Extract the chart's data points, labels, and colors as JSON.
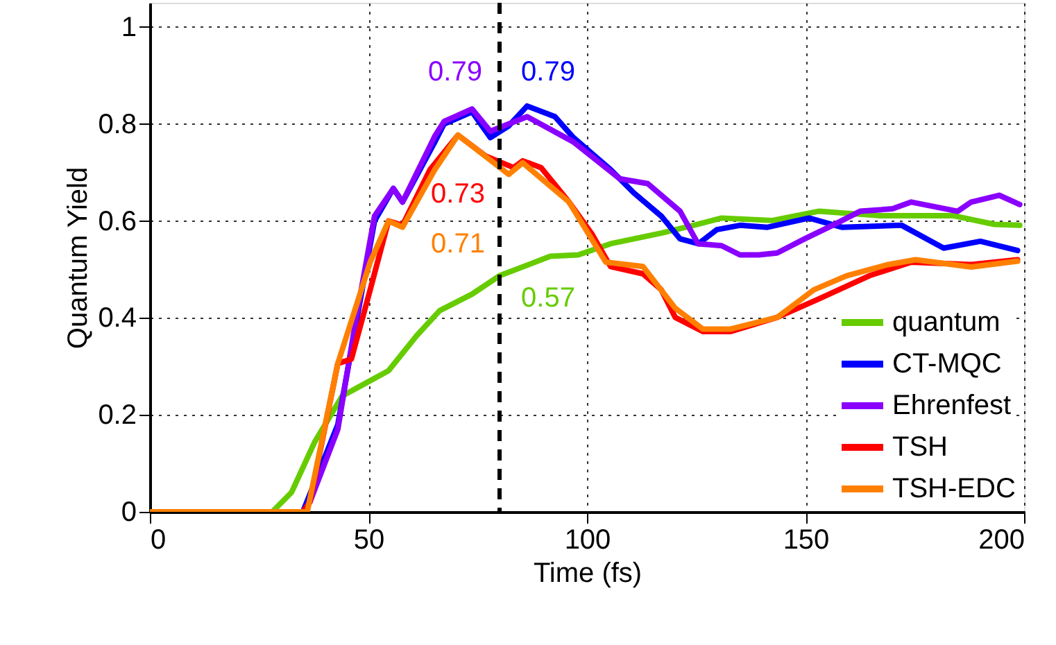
{
  "chart_data": {
    "type": "line",
    "xlabel": "Time (fs)",
    "ylabel": "Quantum Yield",
    "xlim": [
      0,
      200
    ],
    "ylim": [
      0,
      1.05
    ],
    "xticks": [
      0,
      50,
      100,
      150,
      200
    ],
    "yticks": [
      0,
      0.2,
      0.4,
      0.6,
      0.8,
      1
    ],
    "grid": true,
    "legend": "bottom right",
    "line_style": "solid",
    "marker": "none",
    "series": [
      {
        "name": "quantum",
        "color": "#66cc00",
        "x": [
          0,
          28,
          32.4,
          37.7,
          44,
          54.6,
          61,
          66.3,
          73.7,
          80,
          91.6,
          98,
          105.4,
          117,
          124.4,
          130.8,
          142.4,
          153,
          166.7,
          183.7,
          193.2,
          199
        ],
        "values": [
          0,
          0,
          0.04,
          0.144,
          0.239,
          0.291,
          0.363,
          0.415,
          0.449,
          0.487,
          0.527,
          0.53,
          0.553,
          0.575,
          0.591,
          0.606,
          0.601,
          0.62,
          0.611,
          0.611,
          0.593,
          0.591
        ]
      },
      {
        "name": "CT-MQC",
        "color": "#0000ff",
        "x": [
          0,
          35,
          43,
          47.2,
          51.4,
          55.7,
          57.8,
          65.2,
          67.3,
          73.7,
          77.9,
          82.1,
          86.3,
          92.7,
          96.9,
          105.4,
          110.7,
          117,
          121.3,
          125.5,
          129.7,
          135,
          141.3,
          150.8,
          158.3,
          172,
          181.6,
          190,
          198.5
        ],
        "values": [
          0,
          0,
          0.18,
          0.39,
          0.6,
          0.667,
          0.639,
          0.763,
          0.8,
          0.825,
          0.772,
          0.796,
          0.837,
          0.815,
          0.772,
          0.706,
          0.658,
          0.61,
          0.563,
          0.553,
          0.582,
          0.591,
          0.587,
          0.606,
          0.587,
          0.591,
          0.544,
          0.558,
          0.539
        ]
      },
      {
        "name": "Ehrenfest",
        "color": "#8a00ff",
        "x": [
          0,
          35,
          36.6,
          43,
          47.2,
          51.4,
          55.7,
          57.8,
          65.2,
          67.3,
          73.7,
          77.9,
          82.1,
          86.3,
          96.9,
          107.5,
          113.9,
          121.3,
          125.4,
          130.8,
          135,
          139.3,
          143.5,
          149.8,
          156.2,
          162.5,
          169.9,
          174.2,
          184.8,
          187.9,
          194.3,
          199
        ],
        "values": [
          0,
          0,
          0.02,
          0.17,
          0.4,
          0.61,
          0.667,
          0.639,
          0.775,
          0.805,
          0.831,
          0.785,
          0.8,
          0.815,
          0.763,
          0.687,
          0.677,
          0.62,
          0.553,
          0.549,
          0.53,
          0.53,
          0.534,
          0.563,
          0.591,
          0.62,
          0.625,
          0.639,
          0.62,
          0.639,
          0.653,
          0.634
        ]
      },
      {
        "name": "TSH",
        "color": "#ff0000",
        "x": [
          0,
          35,
          36.6,
          43,
          46.1,
          50.4,
          54.6,
          57.8,
          64.1,
          70.5,
          76.8,
          83.2,
          85.3,
          89.5,
          95.9,
          101.2,
          105.4,
          112.8,
          117,
          120.2,
          126.5,
          132.9,
          143.5,
          153,
          164.6,
          174.2,
          187.9,
          198.5
        ],
        "values": [
          0,
          0,
          0.02,
          0.306,
          0.315,
          0.458,
          0.6,
          0.591,
          0.706,
          0.777,
          0.734,
          0.71,
          0.724,
          0.71,
          0.639,
          0.572,
          0.506,
          0.491,
          0.458,
          0.401,
          0.372,
          0.372,
          0.401,
          0.439,
          0.487,
          0.515,
          0.51,
          0.52
        ]
      },
      {
        "name": "TSH-EDC",
        "color": "#ff8000",
        "x": [
          0,
          36,
          43,
          50.4,
          54.6,
          57.8,
          65.2,
          70.5,
          82.1,
          85.3,
          95.9,
          104.3,
          112.8,
          120.2,
          126.5,
          132.9,
          143.5,
          151.9,
          159.4,
          168.9,
          175.2,
          187.9,
          198.5
        ],
        "values": [
          0,
          0,
          0.306,
          0.515,
          0.6,
          0.587,
          0.706,
          0.777,
          0.696,
          0.72,
          0.639,
          0.515,
          0.506,
          0.42,
          0.377,
          0.377,
          0.401,
          0.458,
          0.487,
          0.51,
          0.52,
          0.505,
          0.517
        ]
      }
    ],
    "ref_lines": [
      {
        "axis": "x",
        "value": 80,
        "color": "#000000",
        "line_style": "dashed"
      }
    ],
    "annotations": [
      "0.57",
      "0.79",
      "0.79",
      "0.73",
      "0.71"
    ]
  }
}
